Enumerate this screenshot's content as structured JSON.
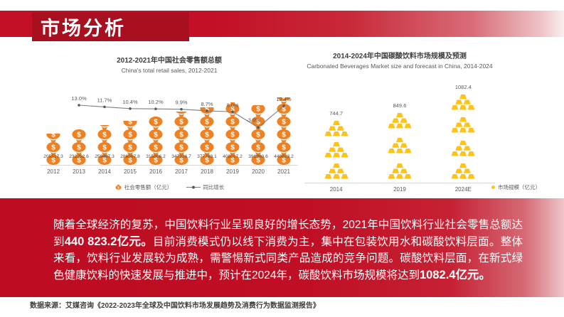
{
  "header": {
    "title": "市场分析"
  },
  "left_chart": {
    "title": "2012-2021年中国社会零售额总额",
    "subtitle": "China's total retail sales, 2012-2021",
    "legend_bar": "社会零售额（亿元）",
    "legend_line": "同比增长"
  },
  "right_chart": {
    "title": "2014-2024年中国碳酸饮料市场规模及预测",
    "subtitle": "Carbonated Beverages Market size and forecast in China, 2014-2024",
    "legend": "市场规模（亿元）"
  },
  "chart_data": [
    {
      "type": "bar",
      "title": "2012-2021年中国社会零售额总额",
      "subtitle": "China's total retail sales, 2012-2021",
      "categories": [
        "2012",
        "2013",
        "2014",
        "2015",
        "2016",
        "2017",
        "2018",
        "2019",
        "2020",
        "2021"
      ],
      "series": [
        {
          "name": "社会零售额（亿元）",
          "type": "bar",
          "values": [
            205517.3,
            232252.6,
            259487.3,
            286587.8,
            315806.2,
            347326.7,
            377783.1,
            408017.2,
            391980.6,
            440823.2
          ]
        },
        {
          "name": "同比增长",
          "type": "line",
          "values": [
            null,
            13.0,
            11.7,
            10.4,
            10.2,
            9.9,
            8.7,
            8.0,
            -3.9,
            12.4
          ]
        }
      ],
      "legend_position": "bottom",
      "icon": "money-bag",
      "accent_color": "#EF8122",
      "line_color": "#7f7f7f"
    },
    {
      "type": "bar",
      "title": "2014-2024年中国碳酸饮料市场规模及预测",
      "subtitle": "Carbonated Beverages Market size and forecast in China, 2014-2024",
      "categories": [
        "2014",
        "2019",
        "2024E"
      ],
      "values": [
        744.7,
        849.6,
        1082.4
      ],
      "series_name": "市场规模（亿元）",
      "icon": "gold-ingots",
      "icon_stacks": [
        3,
        3,
        4
      ],
      "accent_color": "#FDC318",
      "legend_position": "bottom-right"
    }
  ],
  "summary": {
    "runs": [
      {
        "text": "随着全球经济的复苏，中国饮料行业呈现良好的增长态势，2021年中国饮料行业社会零售总额达到",
        "bold": false
      },
      {
        "text": "440 823.2亿元。",
        "bold": true
      },
      {
        "text": "目前消费模式仍以线下消费为主，集中在包装饮用水和碳酸饮料层面。整体来看，饮料行业发展较为成熟，需警惕新式同类产品造成的竞争问题。碳酸饮料层面，在新式绿色健康饮料的快速发展与推进中，预计在2024年，碳酸饮料市场规模将达到",
        "bold": false
      },
      {
        "text": "1082.4亿元。",
        "bold": true
      }
    ]
  },
  "footer": {
    "source": "数据来源：艾媒咨询《2022-2023年全球及中国饮料市场发展趋势及消费行为数据监测报告》"
  }
}
